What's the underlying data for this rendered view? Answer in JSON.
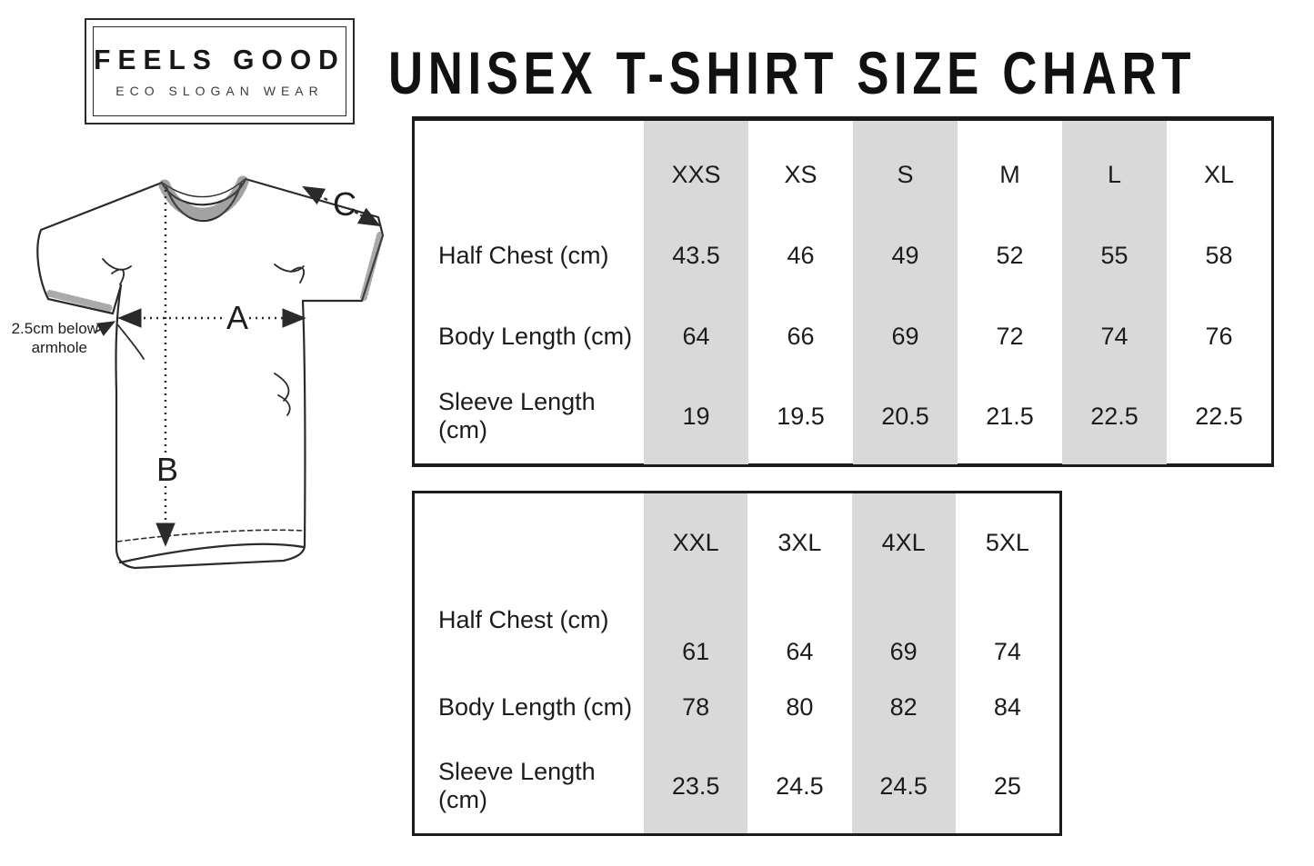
{
  "logo": {
    "title": "FEELS GOOD",
    "subtitle": "ECO SLOGAN WEAR"
  },
  "page_title": "UNISEX T-SHIRT SIZE CHART",
  "diagram": {
    "label_a": "A",
    "label_b": "B",
    "label_c": "C",
    "armhole_note_line1": "2.5cm below",
    "armhole_note_line2": "armhole"
  },
  "size_table_1": {
    "sizes": [
      "XXS",
      "XS",
      "S",
      "M",
      "L",
      "XL"
    ],
    "rows": [
      {
        "label": "Half Chest (cm)",
        "values": [
          "43.5",
          "46",
          "49",
          "52",
          "55",
          "58"
        ]
      },
      {
        "label": "Body Length (cm)",
        "values": [
          "64",
          "66",
          "69",
          "72",
          "74",
          "76"
        ]
      },
      {
        "label": "Sleeve Length (cm)",
        "values": [
          "19",
          "19.5",
          "20.5",
          "21.5",
          "22.5",
          "22.5"
        ]
      }
    ]
  },
  "size_table_2": {
    "sizes": [
      "XXL",
      "3XL",
      "4XL",
      "5XL"
    ],
    "rows": [
      {
        "label": "Half Chest (cm)",
        "values": [
          "61",
          "64",
          "69",
          "74"
        ]
      },
      {
        "label": "Body Length (cm)",
        "values": [
          "78",
          "80",
          "82",
          "84"
        ]
      },
      {
        "label": "Sleeve Length (cm)",
        "values": [
          "23.5",
          "24.5",
          "24.5",
          "25"
        ]
      }
    ]
  },
  "colors": {
    "stripe_gray": "#d9d9d9",
    "table_border": "#1b1b1b",
    "text": "#1c1c1c"
  }
}
